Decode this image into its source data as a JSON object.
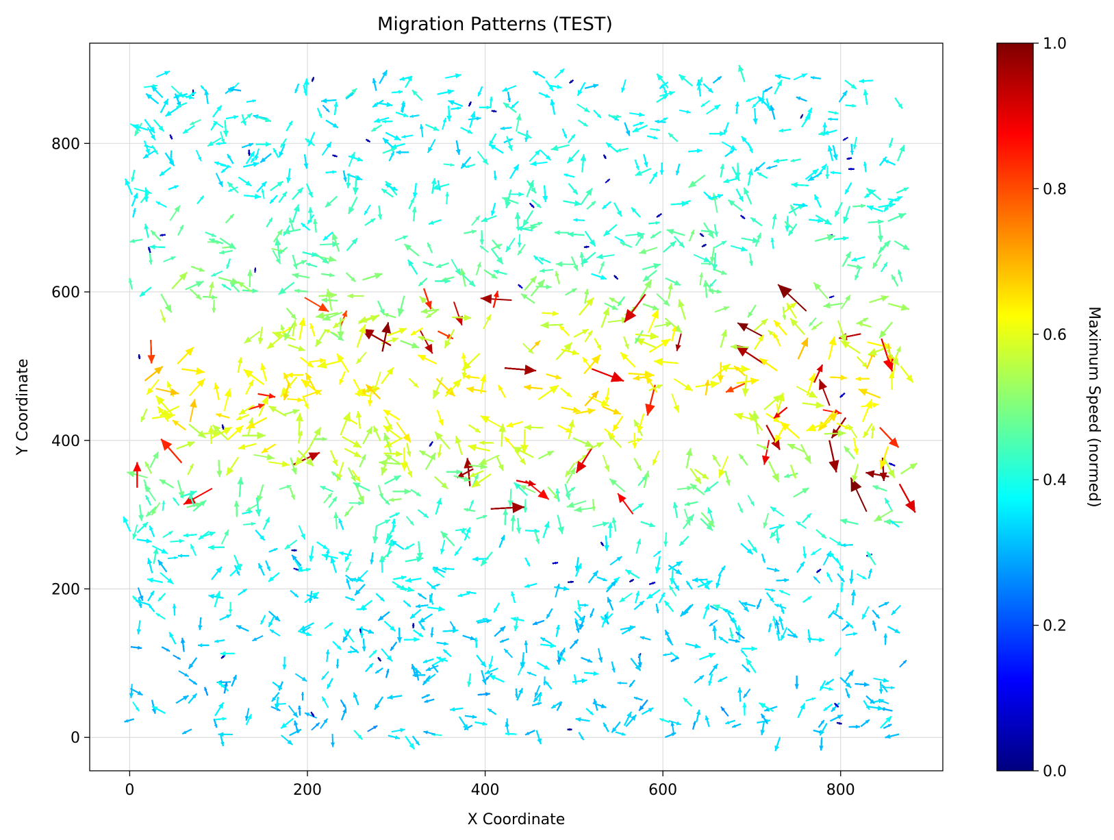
{
  "chart_data": {
    "type": "quiver",
    "title": "Migration Patterns (TEST)",
    "xlabel": "X Coordinate",
    "ylabel": "Y Coordinate",
    "xlim": [
      -45,
      915
    ],
    "ylim": [
      -45,
      935
    ],
    "x_ticks": [
      0,
      200,
      400,
      600,
      800
    ],
    "y_ticks": [
      0,
      200,
      400,
      600,
      800
    ],
    "x_tick_labels": [
      "0",
      "200",
      "400",
      "600",
      "800"
    ],
    "y_tick_labels": [
      "0",
      "200",
      "400",
      "600",
      "800"
    ],
    "grid": true,
    "domain_x": [
      0,
      872
    ],
    "domain_y": [
      0,
      890
    ],
    "colormap": "jet",
    "colorbar": {
      "label": "Maximum Speed (normed)",
      "range": [
        0.0,
        1.0
      ],
      "ticks": [
        0.0,
        0.2,
        0.4,
        0.6,
        0.8,
        1.0
      ],
      "tick_labels": [
        "0.0",
        "0.2",
        "0.4",
        "0.6",
        "0.8",
        "1.0"
      ],
      "stops": [
        "#00007f",
        "#0000ff",
        "#007fff",
        "#00ffff",
        "#7fff7f",
        "#ffff00",
        "#ff7f00",
        "#ff0000",
        "#7f0000"
      ]
    },
    "speed_field": {
      "description_values": [
        {
          "region": "bottom band y 0-250",
          "typical_speed": 0.3
        },
        {
          "region": "middle band y 300-600",
          "typical_speed": 0.62
        },
        {
          "region": "top band y 650-890",
          "typical_speed": 0.38
        }
      ]
    }
  }
}
